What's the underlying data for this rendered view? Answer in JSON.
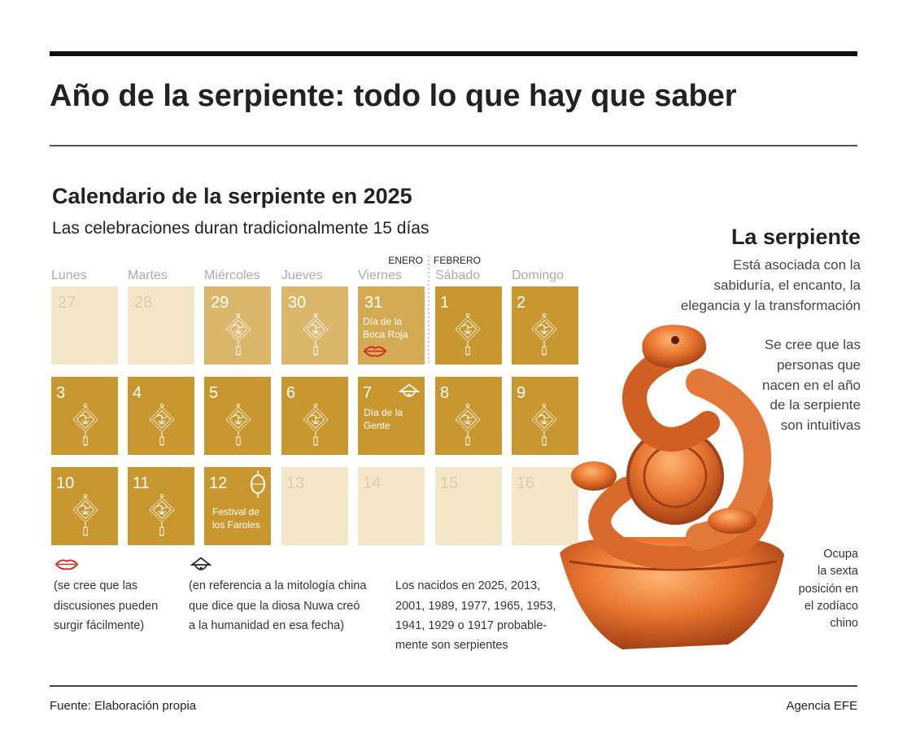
{
  "header": {
    "title": "Año de la serpiente: todo lo que hay que saber"
  },
  "calendar": {
    "title": "Calendario de la serpiente en 2025",
    "subtitle": "Las celebraciones duran tradicionalmente 15 días",
    "month_labels": [
      "ENERO",
      "FEBRERO"
    ],
    "weekdays": [
      "Lunes",
      "Martes",
      "Miércoles",
      "Jueves",
      "Viernes",
      "Sábado",
      "Domingo"
    ],
    "days": [
      {
        "number": 27
      },
      {
        "number": 28
      },
      {
        "number": 29
      },
      {
        "number": 30
      },
      {
        "number": 31,
        "text": [
          "Día de la",
          "Boca Roja"
        ]
      },
      {
        "number": 1
      },
      {
        "number": 2
      },
      {
        "number": 3
      },
      {
        "number": 4
      },
      {
        "number": 5
      },
      {
        "number": 6
      },
      {
        "number": 7,
        "text": [
          "Día de la",
          "Gente"
        ]
      },
      {
        "number": 8
      },
      {
        "number": 9
      },
      {
        "number": 10
      },
      {
        "number": 11
      },
      {
        "number": 12,
        "text": [
          "Festival de",
          "los Faroles"
        ]
      },
      {
        "number": 13
      },
      {
        "number": 14
      },
      {
        "number": 15
      },
      {
        "number": 16
      }
    ]
  },
  "notes": [
    [
      "(se cree que las",
      "discusiones pueden",
      "surgir fácilmente)"
    ],
    [
      "(en referencia a la mitología china",
      "que dice que la diosa Nuwa creó",
      "a la humanidad en esa fecha)"
    ],
    [
      "Los nacidos en 2025, 2013,",
      "2001, 1989, 1977, 1965, 1953,",
      "1941, 1929 o 1917 probable-",
      "mente son serpientes"
    ]
  ],
  "serpent": {
    "title": "La serpiente",
    "paragraphs": [
      [
        "Está asociada con la",
        "sabiduría, el encanto, la",
        "elegancia y la transformación"
      ],
      [
        "Se cree que las",
        "personas que",
        "nacen en el año",
        "de la serpiente",
        "son intuitivas"
      ]
    ],
    "position_note": [
      "Ocupa",
      "la sexta",
      "posición en",
      "el zodíaco",
      "chino"
    ]
  },
  "footer": {
    "source": "Fuente: Elaboración propia",
    "agency": "Agencia EFE"
  }
}
